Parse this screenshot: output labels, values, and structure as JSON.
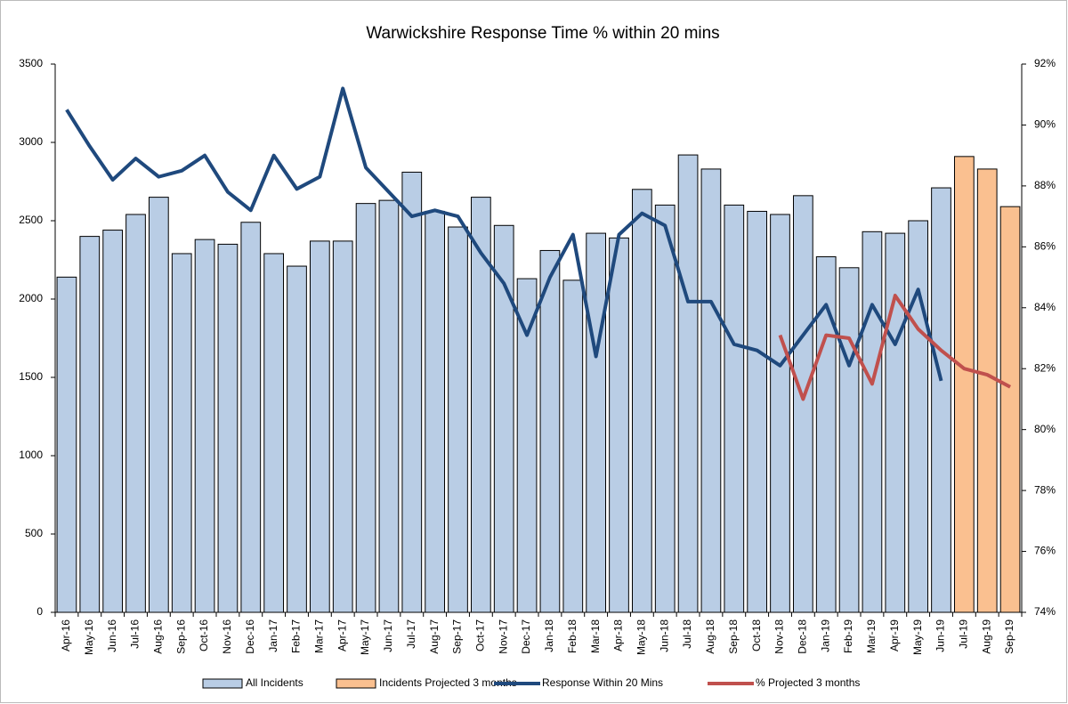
{
  "chart_data": {
    "type": "bar_line",
    "title": "Warwickshire Response Time % within 20 mins",
    "categories": [
      "Apr-16",
      "May-16",
      "Jun-16",
      "Jul-16",
      "Aug-16",
      "Sep-16",
      "Oct-16",
      "Nov-16",
      "Dec-16",
      "Jan-17",
      "Feb-17",
      "Mar-17",
      "Apr-17",
      "May-17",
      "Jun-17",
      "Jul-17",
      "Aug-17",
      "Sep-17",
      "Oct-17",
      "Nov-17",
      "Dec-17",
      "Jan-18",
      "Feb-18",
      "Mar-18",
      "Apr-18",
      "May-18",
      "Jun-18",
      "Jul-18",
      "Aug-18",
      "Sep-18",
      "Oct-18",
      "Nov-18",
      "Dec-18",
      "Jan-19",
      "Feb-19",
      "Mar-19",
      "Apr-19",
      "May-19",
      "Jun-19",
      "Jul-19",
      "Aug-19",
      "Sep-19"
    ],
    "series": [
      {
        "name": "All Incidents",
        "type": "bar",
        "color": "#b9cde5",
        "values": [
          2140,
          2400,
          2440,
          2540,
          2650,
          2290,
          2380,
          2350,
          2490,
          2290,
          2210,
          2370,
          2370,
          2610,
          2630,
          2810,
          2560,
          2460,
          2650,
          2470,
          2130,
          2310,
          2120,
          2420,
          2390,
          2700,
          2600,
          2920,
          2830,
          2600,
          2560,
          2540,
          2660,
          2270,
          2200,
          2430,
          2420,
          2500,
          2710,
          null,
          null,
          null
        ]
      },
      {
        "name": "Incidents Projected 3 months",
        "type": "bar",
        "color": "#fac090",
        "values": [
          null,
          null,
          null,
          null,
          null,
          null,
          null,
          null,
          null,
          null,
          null,
          null,
          null,
          null,
          null,
          null,
          null,
          null,
          null,
          null,
          null,
          null,
          null,
          null,
          null,
          null,
          null,
          null,
          null,
          null,
          null,
          null,
          null,
          null,
          null,
          null,
          null,
          null,
          null,
          2910,
          2830,
          2590
        ]
      },
      {
        "name": "Response Within 20 Mins",
        "type": "line",
        "axis": "y2",
        "color": "#1f497d",
        "values": [
          90.5,
          89.3,
          88.2,
          88.9,
          88.3,
          88.5,
          89.0,
          87.8,
          87.2,
          89.0,
          87.9,
          88.3,
          91.2,
          88.6,
          87.8,
          87.0,
          87.2,
          87.0,
          85.8,
          84.8,
          83.1,
          85.0,
          86.4,
          82.4,
          86.4,
          87.1,
          86.7,
          84.2,
          84.2,
          82.8,
          82.6,
          82.1,
          83.1,
          84.1,
          82.1,
          84.1,
          82.8,
          84.6,
          81.6,
          null,
          null,
          null
        ]
      },
      {
        "name": "% Projected 3 months",
        "type": "line",
        "axis": "y2",
        "color": "#c0504d",
        "values": [
          null,
          null,
          null,
          null,
          null,
          null,
          null,
          null,
          null,
          null,
          null,
          null,
          null,
          null,
          null,
          null,
          null,
          null,
          null,
          null,
          null,
          null,
          null,
          null,
          null,
          null,
          null,
          null,
          null,
          null,
          null,
          83.1,
          81.0,
          83.1,
          83.0,
          81.5,
          84.4,
          83.3,
          82.6,
          82.0,
          81.8,
          81.4
        ]
      }
    ],
    "ylim": [
      0,
      3500
    ],
    "yticks": [
      0,
      500,
      1000,
      1500,
      2000,
      2500,
      3000,
      3500
    ],
    "y2lim": [
      74,
      92
    ],
    "y2ticks": [
      {
        "value": 74,
        "label": "74%"
      },
      {
        "value": 76,
        "label": "76%"
      },
      {
        "value": 78,
        "label": "78%"
      },
      {
        "value": 80,
        "label": "80%"
      },
      {
        "value": 82,
        "label": "82%"
      },
      {
        "value": 84,
        "label": "84%"
      },
      {
        "value": 86,
        "label": "86%"
      },
      {
        "value": 88,
        "label": "88%"
      },
      {
        "value": 90,
        "label": "90%"
      },
      {
        "value": 92,
        "label": "92%"
      }
    ],
    "legend": "bottom"
  }
}
